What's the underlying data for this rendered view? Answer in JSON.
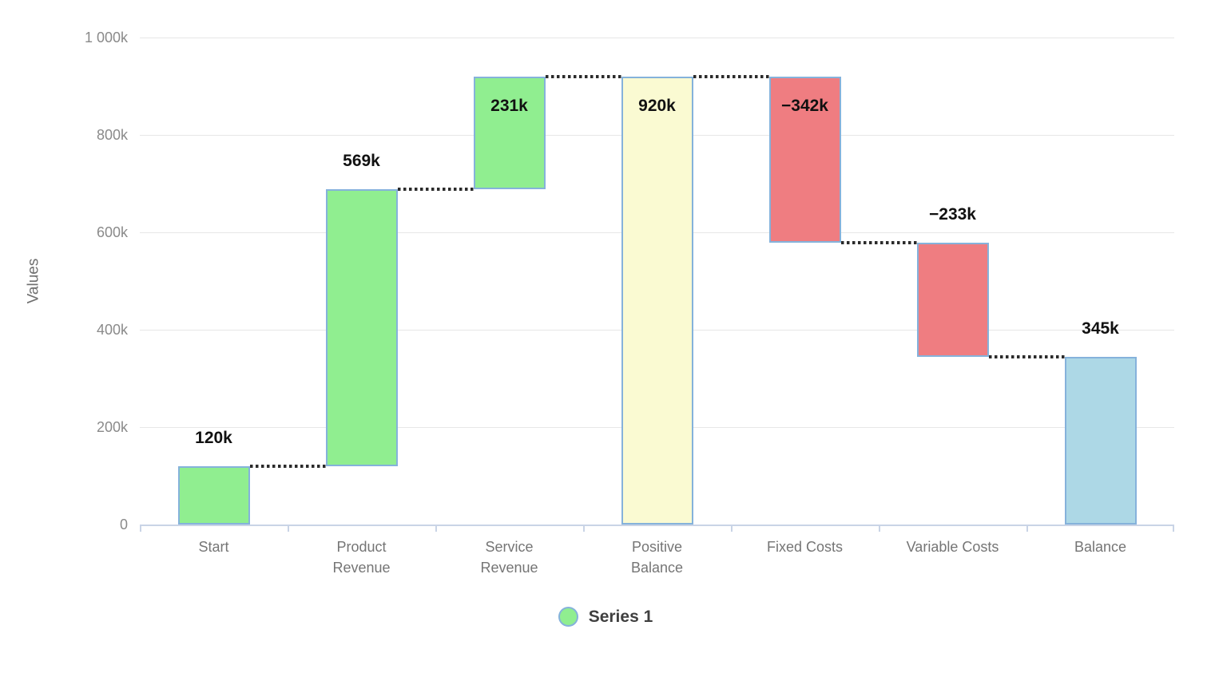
{
  "chart_data": {
    "type": "bar",
    "subtype": "waterfall",
    "title": "",
    "xlabel": "",
    "ylabel": "Values",
    "grid": true,
    "legend_position": "bottom",
    "value_axis": {
      "min": 0,
      "max": 1000,
      "unit": "k",
      "ticks": [
        {
          "label": "0",
          "value": 0
        },
        {
          "label": "200k",
          "value": 200
        },
        {
          "label": "400k",
          "value": 400
        },
        {
          "label": "600k",
          "value": 600
        },
        {
          "label": "800k",
          "value": 800
        },
        {
          "label": "1 000k",
          "value": 1000
        }
      ]
    },
    "categories": [
      "Start",
      "Product\nRevenue",
      "Service\nRevenue",
      "Positive\nBalance",
      "Fixed Costs",
      "Variable Costs",
      "Balance"
    ],
    "series": [
      {
        "name": "Series 1",
        "bars": [
          {
            "category": "Start",
            "label": "120k",
            "value": 120,
            "start": 0,
            "end": 120,
            "kind": "positive"
          },
          {
            "category": "Product Revenue",
            "label": "569k",
            "value": 569,
            "start": 120,
            "end": 689,
            "kind": "positive"
          },
          {
            "category": "Service Revenue",
            "label": "231k",
            "value": 231,
            "start": 689,
            "end": 920,
            "kind": "positive"
          },
          {
            "category": "Positive Balance",
            "label": "920k",
            "value": 920,
            "start": 0,
            "end": 920,
            "kind": "subtotal"
          },
          {
            "category": "Fixed Costs",
            "label": "−342k",
            "value": -342,
            "start": 920,
            "end": 578,
            "kind": "negative"
          },
          {
            "category": "Variable Costs",
            "label": "−233k",
            "value": -233,
            "start": 578,
            "end": 345,
            "kind": "negative"
          },
          {
            "category": "Balance",
            "label": "345k",
            "value": 345,
            "start": 0,
            "end": 345,
            "kind": "total"
          }
        ]
      }
    ],
    "colors": {
      "positive": "#90EE90",
      "negative": "#EF7D81",
      "subtotal": "#FAFAD2",
      "total": "#ADD8E6",
      "bar_border": "#85B2DB",
      "connector": "#2B2B2B",
      "gridline": "#E7E7E7",
      "axis_line": "#C9D4E6",
      "tick_text": "#8A8A8A",
      "category_text": "#757575",
      "value_text": "#111111"
    },
    "legend": {
      "items": [
        {
          "label": "Series 1",
          "marker_fill": "#90EE90",
          "marker_border": "#85B2DB"
        }
      ]
    }
  }
}
